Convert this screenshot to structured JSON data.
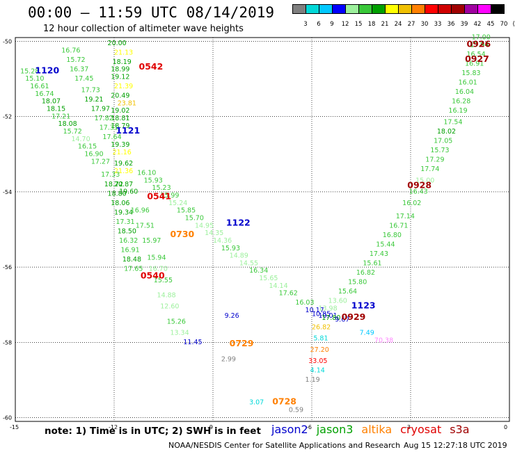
{
  "header": {
    "title": "00:00 — 11:59 UTC 08/14/2019",
    "subtitle": "12 hour collection of altimeter wave heights"
  },
  "colorbar": {
    "colors": [
      "#7f7f7f",
      "#00d8d8",
      "#00c8ff",
      "#0000ff",
      "#9cf09c",
      "#39c839",
      "#00a000",
      "#ffff00",
      "#f0c000",
      "#ff8000",
      "#ff0000",
      "#d00000",
      "#a00000",
      "#a000a0",
      "#ff00ff",
      "#000000"
    ],
    "labels": [
      "3",
      "6",
      "9",
      "12",
      "15",
      "18",
      "21",
      "24",
      "27",
      "30",
      "33",
      "36",
      "39",
      "42",
      "45",
      "70",
      "(ft)"
    ]
  },
  "axes": {
    "lat_ticks": [
      "-50",
      "-52",
      "-54",
      "-56",
      "-58",
      "-60"
    ],
    "lon_ticks": [
      "-15",
      "-12",
      "-9",
      "-6",
      "-3",
      "0"
    ]
  },
  "footer": {
    "note": "note: 1) Time is in UTC; 2) SWH is in feet",
    "legend": [
      {
        "name": "jason2",
        "color": "#0000cc"
      },
      {
        "name": "jason3",
        "color": "#00a000"
      },
      {
        "name": "altika",
        "color": "#ff8000"
      },
      {
        "name": "cryosat",
        "color": "#e00000"
      },
      {
        "name": "s3a",
        "color": "#a00000"
      }
    ],
    "credit": "NOAA/NESDIS Center for Satellite Applications and Research",
    "timestamp": "Aug 15 12:27:18 UTC 2019"
  },
  "pass_labels": [
    {
      "text": "1120",
      "color": "#0000cc",
      "lon": -14.4,
      "lat": -50.85
    },
    {
      "text": "0542",
      "color": "#e00000",
      "lon": -11.25,
      "lat": -50.75
    },
    {
      "text": "1121",
      "color": "#0000cc",
      "lon": -11.95,
      "lat": -52.45
    },
    {
      "text": "0541",
      "color": "#e00000",
      "lon": -11.0,
      "lat": -54.2
    },
    {
      "text": "1122",
      "color": "#0000cc",
      "lon": -8.6,
      "lat": -54.9
    },
    {
      "text": "0730",
      "color": "#ff8000",
      "lon": -10.3,
      "lat": -55.2
    },
    {
      "text": "0540",
      "color": "#e00000",
      "lon": -11.2,
      "lat": -56.3
    },
    {
      "text": "0729",
      "color": "#ff8000",
      "lon": -8.5,
      "lat": -58.1
    },
    {
      "text": "0728",
      "color": "#ff8000",
      "lon": -7.2,
      "lat": -59.65
    },
    {
      "text": "1123",
      "color": "#0000cc",
      "lon": -4.8,
      "lat": -57.1
    },
    {
      "text": "0929",
      "color": "#a00000",
      "lon": -5.1,
      "lat": -57.4
    },
    {
      "text": "0926",
      "color": "#a00000",
      "lon": -1.3,
      "lat": -50.15
    },
    {
      "text": "0927",
      "color": "#a00000",
      "lon": -1.35,
      "lat": -50.55
    },
    {
      "text": "0928",
      "color": "#a00000",
      "lon": -3.1,
      "lat": -53.9
    }
  ],
  "tracks": [
    {
      "name": "cryosat-0542-0540",
      "color": "#e00000",
      "points": [
        {
          "lon": -12.2,
          "lat": -50.1,
          "swh": "20.00",
          "c": "#00a000"
        },
        {
          "lon": -12.0,
          "lat": -50.35,
          "swh": "21.13",
          "c": "#ffff00"
        },
        {
          "lon": -12.05,
          "lat": -50.6,
          "swh": "18.19",
          "c": "#00a000"
        },
        {
          "lon": -12.1,
          "lat": -50.8,
          "swh": "18.99",
          "c": "#00a000"
        },
        {
          "lon": -12.1,
          "lat": -51.0,
          "swh": "19.12",
          "c": "#00a000"
        },
        {
          "lon": -12.0,
          "lat": -51.25,
          "swh": "21.39",
          "c": "#ffff00"
        },
        {
          "lon": -12.1,
          "lat": -51.5,
          "swh": "20.49",
          "c": "#00a000"
        },
        {
          "lon": -11.9,
          "lat": -51.7,
          "swh": "23.81",
          "c": "#f0c000"
        },
        {
          "lon": -12.1,
          "lat": -51.9,
          "swh": "19.02",
          "c": "#00a000"
        },
        {
          "lon": -12.1,
          "lat": -52.1,
          "swh": "18.81",
          "c": "#00a000"
        },
        {
          "lon": -12.1,
          "lat": -52.3,
          "swh": "18.79",
          "c": "#00a000"
        },
        {
          "lon": -12.1,
          "lat": -52.8,
          "swh": "19.39",
          "c": "#00a000"
        },
        {
          "lon": -12.05,
          "lat": -53.0,
          "swh": "21.16",
          "c": "#ffff00"
        },
        {
          "lon": -12.0,
          "lat": -53.3,
          "swh": "19.62",
          "c": "#00a000"
        },
        {
          "lon": -12.0,
          "lat": -53.5,
          "swh": "21.36",
          "c": "#ffff00"
        },
        {
          "lon": -12.0,
          "lat": -53.85,
          "swh": "20.87",
          "c": "#00a000"
        },
        {
          "lon": -11.85,
          "lat": -54.05,
          "swh": "19.60",
          "c": "#00a000"
        },
        {
          "lon": -11.5,
          "lat": -54.55,
          "swh": "16.96",
          "c": "#39c839"
        },
        {
          "lon": -11.35,
          "lat": -54.95,
          "swh": "17.51",
          "c": "#39c839"
        },
        {
          "lon": -11.15,
          "lat": -55.35,
          "swh": "15.97",
          "c": "#39c839"
        },
        {
          "lon": -11.0,
          "lat": -55.8,
          "swh": "15.94",
          "c": "#39c839"
        },
        {
          "lon": -10.95,
          "lat": -56.1,
          "swh": "16.70",
          "c": "#9cf09c"
        },
        {
          "lon": -10.8,
          "lat": -56.4,
          "swh": "15.55",
          "c": "#39c839"
        },
        {
          "lon": -10.7,
          "lat": -56.8,
          "swh": "14.88",
          "c": "#9cf09c"
        },
        {
          "lon": -10.6,
          "lat": -57.1,
          "swh": "12.60",
          "c": "#9cf09c"
        },
        {
          "lon": -10.4,
          "lat": -57.5,
          "swh": "15.26",
          "c": "#39c839"
        },
        {
          "lon": -10.3,
          "lat": -57.8,
          "swh": "13.34",
          "c": "#9cf09c"
        },
        {
          "lon": -9.9,
          "lat": -58.05,
          "swh": "11.45",
          "c": "#0000cc"
        }
      ]
    },
    {
      "name": "jason2-1120-1121",
      "color": "#0000cc",
      "points": [
        {
          "lon": -14.85,
          "lat": -50.85,
          "swh": "15.28",
          "c": "#39c839"
        },
        {
          "lon": -14.7,
          "lat": -51.05,
          "swh": "15.10",
          "c": "#39c839"
        },
        {
          "lon": -14.55,
          "lat": -51.25,
          "swh": "16.61",
          "c": "#39c839"
        },
        {
          "lon": -14.4,
          "lat": -51.45,
          "swh": "16.74",
          "c": "#39c839"
        },
        {
          "lon": -14.2,
          "lat": -51.65,
          "swh": "18.07",
          "c": "#00a000"
        },
        {
          "lon": -14.05,
          "lat": -51.85,
          "swh": "18.15",
          "c": "#00a000"
        },
        {
          "lon": -13.9,
          "lat": -52.05,
          "swh": "17.21",
          "c": "#39c839"
        },
        {
          "lon": -13.7,
          "lat": -52.25,
          "swh": "18.08",
          "c": "#00a000"
        },
        {
          "lon": -13.55,
          "lat": -52.45,
          "swh": "15.72",
          "c": "#39c839"
        },
        {
          "lon": -13.3,
          "lat": -52.65,
          "swh": "14.70",
          "c": "#9cf09c"
        },
        {
          "lon": -13.1,
          "lat": -52.85,
          "swh": "16.15",
          "c": "#39c839"
        },
        {
          "lon": -12.9,
          "lat": -53.05,
          "swh": "16.90",
          "c": "#39c839"
        },
        {
          "lon": -12.7,
          "lat": -53.25,
          "swh": "17.27",
          "c": "#39c839"
        }
      ]
    },
    {
      "name": "jason3-upper",
      "color": "#00a000",
      "points": [
        {
          "lon": -13.6,
          "lat": -50.3,
          "swh": "16.76",
          "c": "#39c839"
        },
        {
          "lon": -13.45,
          "lat": -50.55,
          "swh": "15.72",
          "c": "#39c839"
        },
        {
          "lon": -13.35,
          "lat": -50.8,
          "swh": "16.37",
          "c": "#39c839"
        },
        {
          "lon": -13.2,
          "lat": -51.05,
          "swh": "17.45",
          "c": "#39c839"
        },
        {
          "lon": -13.0,
          "lat": -51.35,
          "swh": "17.73",
          "c": "#39c839"
        },
        {
          "lon": -12.9,
          "lat": -51.6,
          "swh": "19.21",
          "c": "#00a000"
        },
        {
          "lon": -12.7,
          "lat": -51.85,
          "swh": "17.97",
          "c": "#00a000"
        },
        {
          "lon": -12.6,
          "lat": -52.1,
          "swh": "17.82",
          "c": "#39c839"
        },
        {
          "lon": -12.45,
          "lat": -52.35,
          "swh": "17.31",
          "c": "#39c839"
        },
        {
          "lon": -12.35,
          "lat": -52.6,
          "swh": "17.64",
          "c": "#39c839"
        }
      ]
    },
    {
      "name": "jason2-1122",
      "color": "#0000cc",
      "points": [
        {
          "lon": -11.3,
          "lat": -53.55,
          "swh": "16.10",
          "c": "#39c839"
        },
        {
          "lon": -11.1,
          "lat": -53.75,
          "swh": "15.93",
          "c": "#39c839"
        },
        {
          "lon": -10.85,
          "lat": -53.95,
          "swh": "15.23",
          "c": "#39c839"
        },
        {
          "lon": -10.6,
          "lat": -54.15,
          "swh": "15.99",
          "c": "#39c839"
        },
        {
          "lon": -10.35,
          "lat": -54.35,
          "swh": "15.24",
          "c": "#9cf09c"
        },
        {
          "lon": -10.1,
          "lat": -54.55,
          "swh": "15.85",
          "c": "#39c839"
        },
        {
          "lon": -9.85,
          "lat": -54.75,
          "swh": "15.70",
          "c": "#39c839"
        },
        {
          "lon": -9.55,
          "lat": -54.95,
          "swh": "14.95",
          "c": "#9cf09c"
        },
        {
          "lon": -9.25,
          "lat": -55.15,
          "swh": "14.35",
          "c": "#9cf09c"
        },
        {
          "lon": -9.0,
          "lat": -55.35,
          "swh": "14.36",
          "c": "#9cf09c"
        },
        {
          "lon": -8.75,
          "lat": -55.55,
          "swh": "15.93",
          "c": "#39c839"
        },
        {
          "lon": -8.5,
          "lat": -55.75,
          "swh": "14.89",
          "c": "#9cf09c"
        },
        {
          "lon": -8.2,
          "lat": -55.95,
          "swh": "14.55",
          "c": "#9cf09c"
        },
        {
          "lon": -7.9,
          "lat": -56.15,
          "swh": "16.34",
          "c": "#39c839"
        },
        {
          "lon": -7.6,
          "lat": -56.35,
          "swh": "15.65",
          "c": "#9cf09c"
        },
        {
          "lon": -7.3,
          "lat": -56.55,
          "swh": "14.14",
          "c": "#9cf09c"
        },
        {
          "lon": -7.0,
          "lat": -56.75,
          "swh": "17.62",
          "c": "#39c839"
        },
        {
          "lon": -6.5,
          "lat": -57.0,
          "swh": "16.03",
          "c": "#39c839"
        },
        {
          "lon": -6.2,
          "lat": -57.2,
          "swh": "10.17",
          "c": "#0000cc"
        },
        {
          "lon": -5.8,
          "lat": -57.35,
          "swh": "10.01",
          "c": "#0000cc"
        }
      ]
    },
    {
      "name": "jason3-1121-down",
      "color": "#00a000",
      "points": [
        {
          "lon": -12.4,
          "lat": -53.6,
          "swh": "17.33",
          "c": "#39c839"
        },
        {
          "lon": -12.3,
          "lat": -53.85,
          "swh": "18.72",
          "c": "#00a000"
        },
        {
          "lon": -12.2,
          "lat": -54.1,
          "swh": "18.80",
          "c": "#00a000"
        },
        {
          "lon": -12.1,
          "lat": -54.35,
          "swh": "18.06",
          "c": "#00a000"
        },
        {
          "lon": -12.0,
          "lat": -54.6,
          "swh": "19.34",
          "c": "#00a000"
        },
        {
          "lon": -11.95,
          "lat": -54.85,
          "swh": "17.31",
          "c": "#39c839"
        },
        {
          "lon": -11.9,
          "lat": -55.1,
          "swh": "18.50",
          "c": "#00a000"
        },
        {
          "lon": -11.85,
          "lat": -55.35,
          "swh": "16.32",
          "c": "#39c839"
        },
        {
          "lon": -11.8,
          "lat": -55.6,
          "swh": "16.91",
          "c": "#39c839"
        },
        {
          "lon": -11.75,
          "lat": -55.85,
          "swh": "18.48",
          "c": "#00a000"
        },
        {
          "lon": -11.7,
          "lat": -56.1,
          "swh": "17.65",
          "c": "#39c839"
        }
      ]
    },
    {
      "name": "altika-0730-0729-0728",
      "color": "#ff8000",
      "points": [
        {
          "lon": -8.65,
          "lat": -57.35,
          "swh": "9.26",
          "c": "#0000cc"
        },
        {
          "lon": -8.75,
          "lat": -58.5,
          "swh": "2.99",
          "c": "#7f7f7f"
        },
        {
          "lon": -7.9,
          "lat": -59.65,
          "swh": "3.07",
          "c": "#00d8d8"
        },
        {
          "lon": -6.7,
          "lat": -59.85,
          "swh": "0.59",
          "c": "#7f7f7f"
        }
      ]
    },
    {
      "name": "s3a-0929-0928",
      "color": "#a00000",
      "points": [
        {
          "lon": -5.8,
          "lat": -57.15,
          "swh": "13.98",
          "c": "#9cf09c"
        },
        {
          "lon": -5.5,
          "lat": -56.95,
          "swh": "13.60",
          "c": "#9cf09c"
        },
        {
          "lon": -5.2,
          "lat": -56.7,
          "swh": "15.64",
          "c": "#39c839"
        },
        {
          "lon": -4.9,
          "lat": -56.45,
          "swh": "15.80",
          "c": "#39c839"
        },
        {
          "lon": -4.65,
          "lat": -56.2,
          "swh": "16.82",
          "c": "#39c839"
        },
        {
          "lon": -4.45,
          "lat": -55.95,
          "swh": "15.61",
          "c": "#39c839"
        },
        {
          "lon": -4.25,
          "lat": -55.7,
          "swh": "17.43",
          "c": "#39c839"
        },
        {
          "lon": -4.05,
          "lat": -55.45,
          "swh": "15.44",
          "c": "#39c839"
        },
        {
          "lon": -3.85,
          "lat": -55.2,
          "swh": "16.80",
          "c": "#39c839"
        },
        {
          "lon": -3.65,
          "lat": -54.95,
          "swh": "16.71",
          "c": "#39c839"
        },
        {
          "lon": -3.45,
          "lat": -54.7,
          "swh": "17.14",
          "c": "#39c839"
        },
        {
          "lon": -3.25,
          "lat": -54.35,
          "swh": "16.02",
          "c": "#39c839"
        },
        {
          "lon": -3.05,
          "lat": -54.05,
          "swh": "16.43",
          "c": "#39c839"
        },
        {
          "lon": -2.85,
          "lat": -53.75,
          "swh": "15.00",
          "c": "#9cf09c"
        },
        {
          "lon": -2.7,
          "lat": -53.45,
          "swh": "17.74",
          "c": "#39c839"
        },
        {
          "lon": -2.55,
          "lat": -53.2,
          "swh": "17.29",
          "c": "#39c839"
        },
        {
          "lon": -2.4,
          "lat": -52.95,
          "swh": "15.73",
          "c": "#39c839"
        },
        {
          "lon": -2.3,
          "lat": -52.7,
          "swh": "17.05",
          "c": "#39c839"
        },
        {
          "lon": -2.2,
          "lat": -52.45,
          "swh": "18.02",
          "c": "#00a000"
        },
        {
          "lon": -2.0,
          "lat": -52.2,
          "swh": "17.54",
          "c": "#39c839"
        },
        {
          "lon": -1.85,
          "lat": -51.9,
          "swh": "16.19",
          "c": "#39c839"
        },
        {
          "lon": -1.75,
          "lat": -51.65,
          "swh": "16.28",
          "c": "#39c839"
        },
        {
          "lon": -1.65,
          "lat": -51.4,
          "swh": "16.04",
          "c": "#39c839"
        },
        {
          "lon": -1.55,
          "lat": -51.15,
          "swh": "16.01",
          "c": "#39c839"
        },
        {
          "lon": -1.45,
          "lat": -50.9,
          "swh": "15.83",
          "c": "#39c839"
        },
        {
          "lon": -1.35,
          "lat": -50.65,
          "swh": "16.91",
          "c": "#39c839"
        },
        {
          "lon": -1.3,
          "lat": -50.4,
          "swh": "16.54",
          "c": "#39c839"
        },
        {
          "lon": -1.2,
          "lat": -50.15,
          "swh": "17.94",
          "c": "#00a000"
        },
        {
          "lon": -1.15,
          "lat": -49.95,
          "swh": "17.00",
          "c": "#39c839"
        }
      ]
    },
    {
      "name": "misc-cluster",
      "color": "#888888",
      "points": [
        {
          "lon": -6.0,
          "lat": -57.3,
          "swh": "10.85",
          "c": "#0000cc"
        },
        {
          "lon": -5.7,
          "lat": -57.4,
          "swh": "17.80",
          "c": "#00a000"
        },
        {
          "lon": -5.3,
          "lat": -57.45,
          "swh": "9.67",
          "c": "#0000cc"
        },
        {
          "lon": -6.0,
          "lat": -57.65,
          "swh": "26.82",
          "c": "#f0c000"
        },
        {
          "lon": -5.95,
          "lat": -57.95,
          "swh": "5.81",
          "c": "#00d8d8"
        },
        {
          "lon": -6.05,
          "lat": -58.25,
          "swh": "27.20",
          "c": "#ff8000"
        },
        {
          "lon": -6.1,
          "lat": -58.55,
          "swh": "33.05",
          "c": "#ff0000"
        },
        {
          "lon": -6.05,
          "lat": -58.8,
          "swh": "4.14",
          "c": "#00d8d8"
        },
        {
          "lon": -6.2,
          "lat": -59.05,
          "swh": "1.19",
          "c": "#7f7f7f"
        },
        {
          "lon": -4.55,
          "lat": -57.8,
          "swh": "7.49",
          "c": "#00c8ff"
        },
        {
          "lon": -4.1,
          "lat": -58.0,
          "swh": "70.38",
          "c": "#ff88ff"
        }
      ]
    }
  ]
}
